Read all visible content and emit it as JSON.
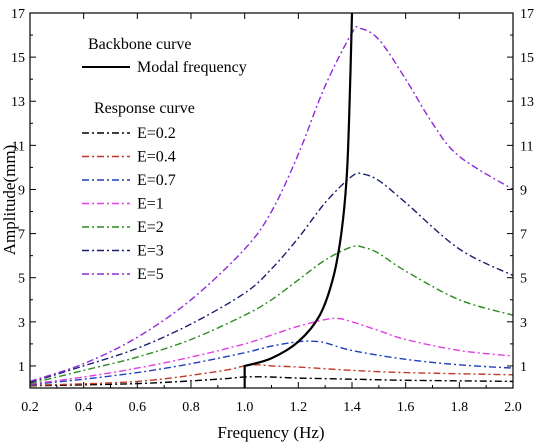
{
  "chart_data": {
    "type": "line",
    "xlabel": "Frequency (Hz)",
    "ylabel": "Amplitude(mm)",
    "xlim": [
      0.2,
      2.0
    ],
    "ylim": [
      0,
      17
    ],
    "x_ticks": [
      "0.2",
      "0.4",
      "0.6",
      "0.8",
      "1.0",
      "1.2",
      "1.4",
      "1.6",
      "1.8",
      "2.0"
    ],
    "y_ticks": [
      "1",
      "3",
      "5",
      "7",
      "9",
      "11",
      "13",
      "15",
      "17"
    ],
    "y_ticks_right": [
      "1",
      "3",
      "5",
      "7",
      "9",
      "11",
      "13",
      "15",
      "17"
    ],
    "grid": false,
    "legend_placement": "top-left",
    "legend": {
      "backbone_heading": "Backbone curve",
      "backbone_label": "Modal frequency",
      "response_heading": "Response curve"
    },
    "backbone": {
      "name": "Modal frequency",
      "color": "#000000",
      "x": [
        1.0,
        1.0,
        1.1,
        1.2,
        1.28,
        1.33,
        1.36,
        1.38,
        1.39,
        1.4
      ],
      "y": [
        0.0,
        1.0,
        1.35,
        2.1,
        3.3,
        5.0,
        7.0,
        9.5,
        12.5,
        17.0
      ]
    },
    "series": [
      {
        "name": "E=0.2",
        "color": "#000000",
        "dash": "7,3,2,3",
        "x": [
          0.2,
          0.6,
          0.9,
          1.0,
          1.1,
          1.2,
          1.4,
          1.6,
          2.0
        ],
        "y": [
          0.1,
          0.2,
          0.4,
          0.5,
          0.5,
          0.45,
          0.4,
          0.35,
          0.3
        ]
      },
      {
        "name": "E=0.4",
        "color": "#c0392b",
        "dash": "7,3,2,3",
        "x": [
          0.2,
          0.6,
          0.9,
          1.0,
          1.05,
          1.1,
          1.2,
          1.4,
          1.6,
          2.0
        ],
        "y": [
          0.12,
          0.3,
          0.75,
          1.0,
          1.05,
          1.0,
          0.95,
          0.8,
          0.7,
          0.6
        ]
      },
      {
        "name": "E=0.7",
        "color": "#1f3fbf",
        "dash": "7,3,2,3",
        "x": [
          0.2,
          0.4,
          0.6,
          0.8,
          1.0,
          1.1,
          1.2,
          1.25,
          1.3,
          1.4,
          1.6,
          1.8,
          2.0
        ],
        "y": [
          0.15,
          0.4,
          0.7,
          1.1,
          1.6,
          1.9,
          2.1,
          2.12,
          2.05,
          1.7,
          1.3,
          1.05,
          0.9
        ]
      },
      {
        "name": "E=1",
        "color": "#e040e0",
        "dash": "7,3,2,3",
        "x": [
          0.2,
          0.4,
          0.6,
          0.8,
          1.0,
          1.1,
          1.2,
          1.3,
          1.35,
          1.4,
          1.5,
          1.6,
          1.8,
          2.0
        ],
        "y": [
          0.18,
          0.5,
          0.9,
          1.4,
          2.0,
          2.4,
          2.8,
          3.1,
          3.15,
          3.0,
          2.6,
          2.2,
          1.7,
          1.45
        ]
      },
      {
        "name": "E=2",
        "color": "#2e8b22",
        "dash": "7,3,2,3",
        "x": [
          0.2,
          0.4,
          0.6,
          0.8,
          1.0,
          1.1,
          1.2,
          1.3,
          1.4,
          1.45,
          1.5,
          1.6,
          1.8,
          2.0
        ],
        "y": [
          0.2,
          0.8,
          1.4,
          2.2,
          3.3,
          4.0,
          4.9,
          5.8,
          6.4,
          6.35,
          6.1,
          5.3,
          4.0,
          3.3
        ]
      },
      {
        "name": "E=3",
        "color": "#1a1f6e",
        "dash": "7,3,2,3",
        "x": [
          0.2,
          0.4,
          0.6,
          0.8,
          1.0,
          1.1,
          1.2,
          1.3,
          1.4,
          1.44,
          1.5,
          1.6,
          1.8,
          2.0
        ],
        "y": [
          0.25,
          1.0,
          1.8,
          2.9,
          4.3,
          5.4,
          6.8,
          8.4,
          9.6,
          9.7,
          9.4,
          8.4,
          6.3,
          5.1
        ]
      },
      {
        "name": "E=5",
        "color": "#8e2bd6",
        "dash": "7,3,2,3",
        "x": [
          0.2,
          0.4,
          0.6,
          0.8,
          1.0,
          1.1,
          1.2,
          1.3,
          1.4,
          1.43,
          1.5,
          1.6,
          1.7,
          1.8,
          2.0
        ],
        "y": [
          0.3,
          1.1,
          2.3,
          4.0,
          6.3,
          8.0,
          10.6,
          13.7,
          16.1,
          16.3,
          15.8,
          14.0,
          12.0,
          10.5,
          9.0
        ]
      }
    ]
  }
}
